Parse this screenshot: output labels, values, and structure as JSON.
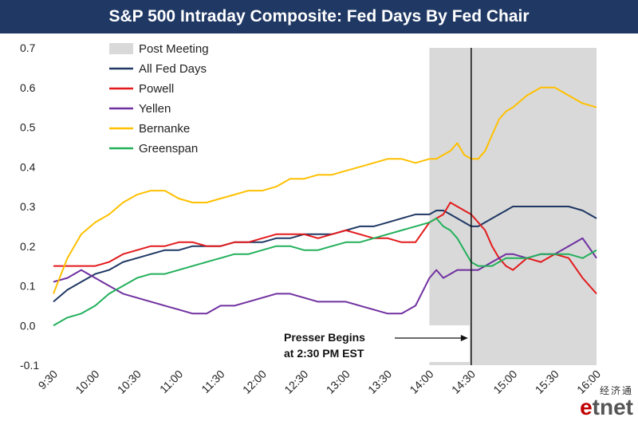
{
  "chart_data": {
    "type": "line",
    "title": "S&P 500 Intraday Composite: Fed Days By Fed Chair",
    "ylim": [
      -0.1,
      0.7
    ],
    "yticks": [
      "0.7",
      "0.6",
      "0.5",
      "0.4",
      "0.3",
      "0.2",
      "0.1",
      "0.0",
      "-0.1"
    ],
    "ytick_values": [
      0.7,
      0.6,
      0.5,
      0.4,
      0.3,
      0.2,
      0.1,
      0.0,
      -0.1
    ],
    "x_minutes_range": [
      570,
      960
    ],
    "xticks": [
      "9:30",
      "10:00",
      "10:30",
      "11:00",
      "11:30",
      "12:00",
      "12:30",
      "13:00",
      "13:30",
      "14:00",
      "14:30",
      "15:00",
      "15:30",
      "16:00"
    ],
    "xtick_minutes": [
      570,
      600,
      630,
      660,
      690,
      720,
      750,
      780,
      810,
      840,
      870,
      900,
      930,
      960
    ],
    "post_meeting_start_minutes": 840,
    "presser_minutes": 870,
    "legend_position": "top-left",
    "legend_shaded_label": "Post Meeting",
    "annotation": [
      "Presser Begins",
      "at 2:30 PM EST"
    ],
    "x_times": [
      "9:30",
      "9:40",
      "9:50",
      "10:00",
      "10:10",
      "10:20",
      "10:30",
      "10:40",
      "10:50",
      "11:00",
      "11:10",
      "11:20",
      "11:30",
      "11:40",
      "11:50",
      "12:00",
      "12:10",
      "12:20",
      "12:30",
      "12:40",
      "12:50",
      "13:00",
      "13:10",
      "13:20",
      "13:30",
      "13:40",
      "13:50",
      "14:00",
      "14:05",
      "14:10",
      "14:15",
      "14:20",
      "14:25",
      "14:30",
      "14:35",
      "14:40",
      "14:45",
      "14:50",
      "14:55",
      "15:00",
      "15:10",
      "15:20",
      "15:30",
      "15:40",
      "15:50",
      "16:00"
    ],
    "x_minutes": [
      570,
      580,
      590,
      600,
      610,
      620,
      630,
      640,
      650,
      660,
      670,
      680,
      690,
      700,
      710,
      720,
      730,
      740,
      750,
      760,
      770,
      780,
      790,
      800,
      810,
      820,
      830,
      840,
      845,
      850,
      855,
      860,
      865,
      870,
      875,
      880,
      885,
      890,
      895,
      900,
      910,
      920,
      930,
      940,
      950,
      960
    ],
    "series": [
      {
        "name": "All Fed Days",
        "color": "#1f3864",
        "values": [
          0.06,
          0.09,
          0.11,
          0.13,
          0.14,
          0.16,
          0.17,
          0.18,
          0.19,
          0.19,
          0.2,
          0.2,
          0.2,
          0.21,
          0.21,
          0.21,
          0.22,
          0.22,
          0.23,
          0.23,
          0.23,
          0.24,
          0.25,
          0.25,
          0.26,
          0.27,
          0.28,
          0.28,
          0.29,
          0.29,
          0.28,
          0.27,
          0.26,
          0.25,
          0.25,
          0.26,
          0.27,
          0.28,
          0.29,
          0.3,
          0.3,
          0.3,
          0.3,
          0.3,
          0.29,
          0.27
        ]
      },
      {
        "name": "Powell",
        "color": "#e31a1c",
        "values": [
          0.15,
          0.15,
          0.15,
          0.15,
          0.16,
          0.18,
          0.19,
          0.2,
          0.2,
          0.21,
          0.21,
          0.2,
          0.2,
          0.21,
          0.21,
          0.22,
          0.23,
          0.23,
          0.23,
          0.22,
          0.23,
          0.24,
          0.23,
          0.22,
          0.22,
          0.21,
          0.21,
          0.26,
          0.27,
          0.28,
          0.31,
          0.3,
          0.29,
          0.28,
          0.26,
          0.24,
          0.2,
          0.17,
          0.15,
          0.14,
          0.17,
          0.16,
          0.18,
          0.17,
          0.12,
          0.08
        ]
      },
      {
        "name": "Yellen",
        "color": "#7030a0",
        "values": [
          0.11,
          0.12,
          0.14,
          0.12,
          0.1,
          0.08,
          0.07,
          0.06,
          0.05,
          0.04,
          0.03,
          0.03,
          0.05,
          0.05,
          0.06,
          0.07,
          0.08,
          0.08,
          0.07,
          0.06,
          0.06,
          0.06,
          0.05,
          0.04,
          0.03,
          0.03,
          0.05,
          0.12,
          0.14,
          0.12,
          0.13,
          0.14,
          0.14,
          0.14,
          0.14,
          0.15,
          0.16,
          0.17,
          0.18,
          0.18,
          0.17,
          0.18,
          0.18,
          0.2,
          0.22,
          0.17
        ]
      },
      {
        "name": "Bernanke",
        "color": "#ffc000",
        "values": [
          0.08,
          0.17,
          0.23,
          0.26,
          0.28,
          0.31,
          0.33,
          0.34,
          0.34,
          0.32,
          0.31,
          0.31,
          0.32,
          0.33,
          0.34,
          0.34,
          0.35,
          0.37,
          0.37,
          0.38,
          0.38,
          0.39,
          0.4,
          0.41,
          0.42,
          0.42,
          0.41,
          0.42,
          0.42,
          0.43,
          0.44,
          0.46,
          0.43,
          0.42,
          0.42,
          0.44,
          0.48,
          0.52,
          0.54,
          0.55,
          0.58,
          0.6,
          0.6,
          0.58,
          0.56,
          0.55
        ]
      },
      {
        "name": "Greenspan",
        "color": "#22b05a",
        "values": [
          0.0,
          0.02,
          0.03,
          0.05,
          0.08,
          0.1,
          0.12,
          0.13,
          0.13,
          0.14,
          0.15,
          0.16,
          0.17,
          0.18,
          0.18,
          0.19,
          0.2,
          0.2,
          0.19,
          0.19,
          0.2,
          0.21,
          0.21,
          0.22,
          0.23,
          0.24,
          0.25,
          0.26,
          0.27,
          0.25,
          0.24,
          0.22,
          0.19,
          0.16,
          0.15,
          0.15,
          0.15,
          0.16,
          0.17,
          0.17,
          0.17,
          0.18,
          0.18,
          0.18,
          0.17,
          0.19
        ]
      }
    ]
  },
  "watermark": {
    "cn": "经济通",
    "logo_e": "e",
    "logo_rest": "tnet"
  }
}
